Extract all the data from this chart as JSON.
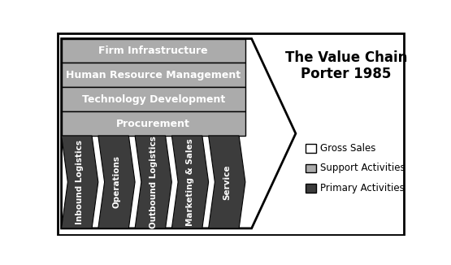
{
  "title_line1": "The Value Chain",
  "title_line2": "Porter 1985",
  "support_activities": [
    "Firm Infrastructure",
    "Human Resource Management",
    "Technology Development",
    "Procurement"
  ],
  "primary_activities": [
    "Inbound Logistics",
    "Operations",
    "Outbound Logistics",
    "Marketing & Sales",
    "Service"
  ],
  "color_white": "#FFFFFF",
  "color_support_gray": "#ABABAB",
  "color_dark_gray": "#3C3C3C",
  "color_border": "#000000",
  "color_background": "#FFFFFF",
  "legend_labels": [
    "Gross Sales",
    "Support Activities",
    "Primary Activities"
  ],
  "legend_colors": [
    "#FFFFFF",
    "#ABABAB",
    "#3C3C3C"
  ],
  "fig_width": 5.55,
  "fig_height": 3.26,
  "fig_dpi": 100
}
